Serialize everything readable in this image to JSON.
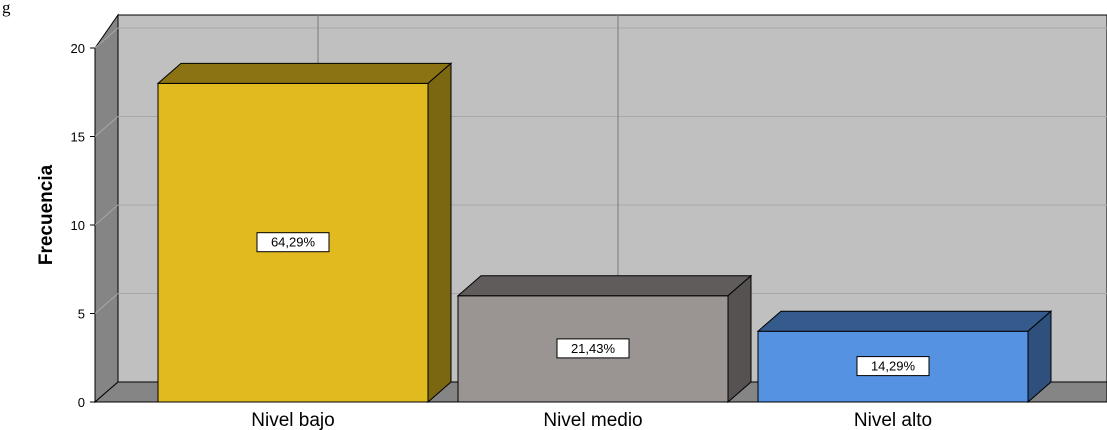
{
  "corner_text": "g",
  "chart_data": {
    "type": "bar",
    "categories": [
      "Nivel bajo",
      "Nivel medio",
      "Nivel alto"
    ],
    "values": [
      18,
      6,
      4
    ],
    "data_labels": [
      "64,29%",
      "21,43%",
      "14,29%"
    ],
    "colors": [
      "#e0ba1e",
      "#9a9593",
      "#5592e2"
    ],
    "ylabel": "Frecuencia",
    "ylim": [
      0,
      20
    ],
    "yticks": [
      0,
      5,
      10,
      15,
      20
    ],
    "grid": true,
    "style": "3d"
  }
}
